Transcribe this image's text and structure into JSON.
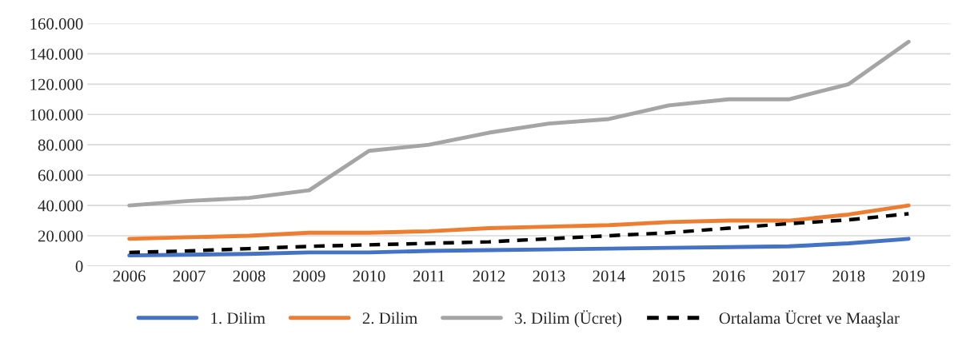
{
  "chart_data": {
    "type": "line",
    "categories": [
      "2006",
      "2007",
      "2008",
      "2009",
      "2010",
      "2011",
      "2012",
      "2013",
      "2014",
      "2015",
      "2016",
      "2017",
      "2018",
      "2019"
    ],
    "series": [
      {
        "name": "1. Dilim",
        "color": "#4472c4",
        "values": [
          7000,
          7500,
          8000,
          9000,
          9000,
          10000,
          10500,
          11000,
          11500,
          12000,
          12500,
          13000,
          15000,
          18000
        ]
      },
      {
        "name": "2. Dilim",
        "color": "#ed7d31",
        "values": [
          18000,
          19000,
          20000,
          22000,
          22000,
          23000,
          25000,
          26000,
          27000,
          29000,
          30000,
          30000,
          34000,
          40000
        ]
      },
      {
        "name": "3. Dilim (Ücret)",
        "color": "#a5a5a5",
        "values": [
          40000,
          43000,
          45000,
          50000,
          76000,
          80000,
          88000,
          94000,
          97000,
          106000,
          110000,
          110000,
          120000,
          148000
        ]
      },
      {
        "name": "Ortalama Ücret ve Maaşlar",
        "color": "#000000",
        "line_style": "dashed",
        "values": [
          9000,
          10000,
          11500,
          13000,
          14000,
          15000,
          16000,
          18000,
          20000,
          22000,
          25000,
          28000,
          30500,
          34500
        ]
      }
    ],
    "ylim": [
      0,
      160000
    ],
    "yticks": [
      0,
      {
        "value": 20000,
        "label": "20.000"
      },
      {
        "value": 40000,
        "label": "40.000"
      },
      {
        "value": 60000,
        "label": "60.000"
      },
      {
        "value": 80000,
        "label": "80.000"
      },
      {
        "value": 100000,
        "label": "100.000"
      },
      {
        "value": 120000,
        "label": "120.000"
      },
      {
        "value": 140000,
        "label": "140.000"
      },
      {
        "value": 160000,
        "label": "160.000"
      }
    ],
    "grid": "y",
    "legend": "bottom",
    "line_style": "solid",
    "marker": "none"
  }
}
